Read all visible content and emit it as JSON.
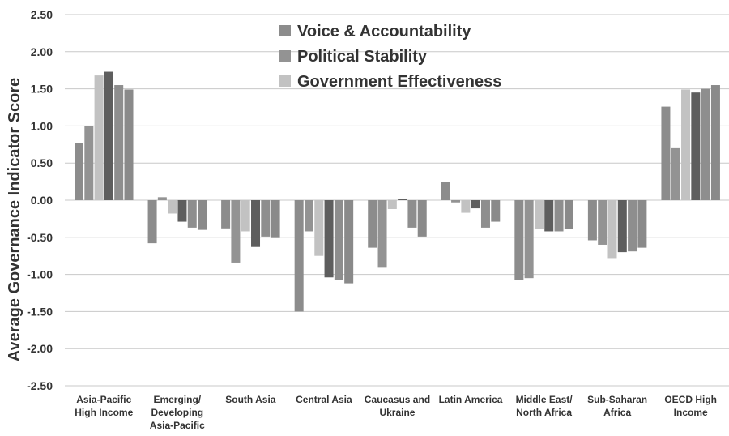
{
  "chart_data": {
    "type": "bar",
    "ylabel": "Average Governance Indicator Score",
    "xlabel": "",
    "ylim": [
      -2.5,
      2.5
    ],
    "yticks": [
      "2.50",
      "2.00",
      "1.50",
      "1.00",
      "0.50",
      "0.00",
      "-0.50",
      "-1.00",
      "-1.50",
      "-2.00",
      "-2.50"
    ],
    "grid": true,
    "legend_position": "top-center",
    "categories": [
      [
        "Asia-Pacific",
        "High Income"
      ],
      [
        "Emerging/",
        "Developing",
        "Asia-Pacific"
      ],
      [
        "South Asia"
      ],
      [
        "Central Asia"
      ],
      [
        "Caucasus and",
        "Ukraine"
      ],
      [
        "Latin America"
      ],
      [
        "Middle East/",
        "North Africa"
      ],
      [
        "Sub-Saharan",
        "Africa"
      ],
      [
        "OECD High",
        "Income"
      ]
    ],
    "series": [
      {
        "name": "Voice & Accountability",
        "color": "#8c8c8c",
        "values": [
          0.77,
          -0.58,
          -0.38,
          -1.5,
          -0.64,
          0.25,
          -1.08,
          -0.54,
          1.26
        ]
      },
      {
        "name": "Political Stability",
        "color": "#939393",
        "values": [
          1.0,
          0.04,
          -0.84,
          -0.42,
          -0.91,
          -0.03,
          -1.05,
          -0.6,
          0.7
        ]
      },
      {
        "name": "Government Effectiveness",
        "color": "#c2c2c2",
        "values": [
          1.68,
          -0.18,
          -0.42,
          -0.75,
          -0.12,
          -0.17,
          -0.39,
          -0.78,
          1.49
        ]
      },
      {
        "color": "#5e5e5e",
        "values": [
          1.73,
          -0.29,
          -0.63,
          -1.04,
          0.02,
          -0.11,
          -0.42,
          -0.7,
          1.45
        ]
      },
      {
        "color": "#8e8e8e",
        "values": [
          1.55,
          -0.37,
          -0.49,
          -1.08,
          -0.37,
          -0.37,
          -0.42,
          -0.69,
          1.5
        ]
      },
      {
        "color": "#8a8a8a",
        "values": [
          1.49,
          -0.4,
          -0.51,
          -1.12,
          -0.49,
          -0.29,
          -0.39,
          -0.64,
          1.55
        ]
      }
    ]
  }
}
